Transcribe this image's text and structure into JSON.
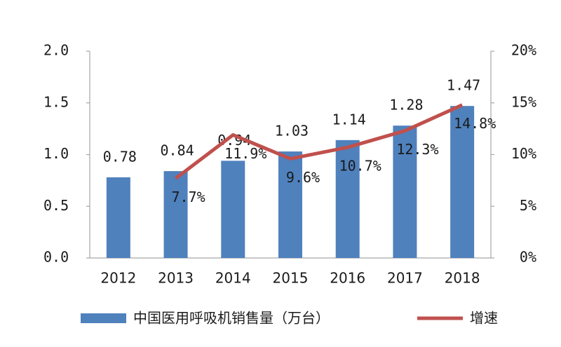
{
  "chart_data": {
    "type": "bar",
    "categories": [
      "2012",
      "2013",
      "2014",
      "2015",
      "2016",
      "2017",
      "2018"
    ],
    "series": [
      {
        "name": "中国医用呼吸机销售量（万台）",
        "type": "bar",
        "color": "#4f81bd",
        "values": [
          0.78,
          0.84,
          0.94,
          1.03,
          1.14,
          1.28,
          1.47
        ]
      },
      {
        "name": "增速",
        "type": "line",
        "axis": "y2",
        "color": "#c0504d",
        "values": [
          null,
          7.7,
          11.9,
          9.6,
          10.7,
          12.3,
          14.8
        ],
        "value_labels": [
          null,
          "7.7%",
          "11.9%",
          "9.6%",
          "10.7%",
          "12.3%",
          "14.8%"
        ]
      }
    ],
    "ylim": [
      0,
      2
    ],
    "yticks": [
      {
        "value": 0,
        "label": "0.0"
      },
      {
        "value": 0.5,
        "label": "0.5"
      },
      {
        "value": 1,
        "label": "1.0"
      },
      {
        "value": 1.5,
        "label": "1.5"
      },
      {
        "value": 2,
        "label": "2.0"
      }
    ],
    "y2lim": [
      0,
      20
    ],
    "y2ticks": [
      {
        "value": 0,
        "label": "0%"
      },
      {
        "value": 5,
        "label": "5%"
      },
      {
        "value": 10,
        "label": "10%"
      },
      {
        "value": 15,
        "label": "15%"
      },
      {
        "value": 20,
        "label": "20%"
      }
    ],
    "legend": "bottom"
  }
}
